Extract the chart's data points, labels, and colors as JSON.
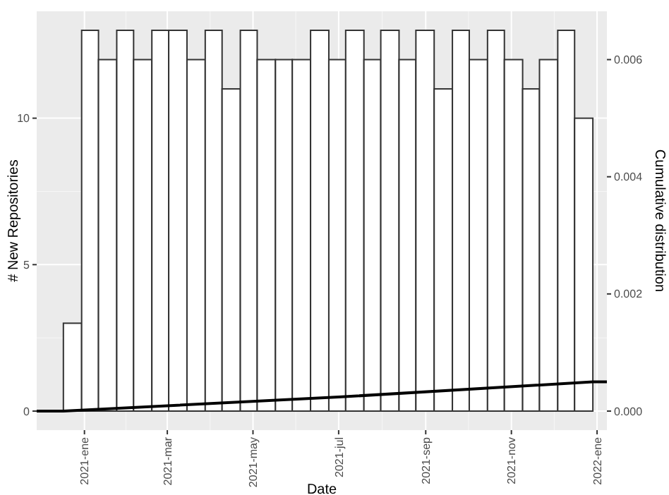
{
  "chart_data": {
    "type": "histogram",
    "xlabel": "Date",
    "ylabel": "# New Repositories",
    "y2label": "Cumulative distribution",
    "bins": [
      "2020-12-17",
      "2020-12-30",
      "2021-01-11",
      "2021-01-24",
      "2021-02-05",
      "2021-02-18",
      "2021-03-02",
      "2021-03-15",
      "2021-03-28",
      "2021-04-09",
      "2021-04-22",
      "2021-05-04",
      "2021-05-17",
      "2021-05-29",
      "2021-06-11",
      "2021-06-24",
      "2021-07-06",
      "2021-07-19",
      "2021-07-31",
      "2021-08-13",
      "2021-08-25",
      "2021-09-07",
      "2021-09-20",
      "2021-10-02",
      "2021-10-15",
      "2021-10-27",
      "2021-11-09",
      "2021-11-21",
      "2021-12-04",
      "2021-12-16",
      "2021-12-29"
    ],
    "values": [
      3,
      13,
      12,
      13,
      12,
      13,
      13,
      12,
      13,
      11,
      13,
      12,
      12,
      12,
      13,
      12,
      13,
      12,
      13,
      12,
      13,
      11,
      13,
      12,
      13,
      12,
      11,
      12,
      13,
      10
    ],
    "color": "#ffffff",
    "series": [
      {
        "type": "line",
        "axis": "y2",
        "color": "#000000",
        "x": [
          "2020-11-28",
          "2020-12-17",
          "2021-07-01",
          "2021-12-29",
          "2022-01-08"
        ],
        "values": [
          0,
          0,
          0.00024,
          0.0005,
          0.0005
        ]
      }
    ],
    "xlim": [
      "2020-11-28",
      "2022-01-08"
    ],
    "xticks": [
      {
        "value": "2021-01-01",
        "label": "2021-ene"
      },
      {
        "value": "2021-03-01",
        "label": "2021-mar"
      },
      {
        "value": "2021-05-01",
        "label": "2021-may"
      },
      {
        "value": "2021-07-01",
        "label": "2021-jul"
      },
      {
        "value": "2021-09-01",
        "label": "2021-sep"
      },
      {
        "value": "2021-11-01",
        "label": "2021-nov"
      },
      {
        "value": "2022-01-01",
        "label": "2022-ene"
      }
    ],
    "ylim": [
      -0.65,
      13.65
    ],
    "yticks": [
      0,
      5,
      10
    ],
    "y2lim": [
      -0.000325,
      0.006825
    ],
    "y2ticks": [
      {
        "value": 0,
        "label": "0.000"
      },
      {
        "value": 0.002,
        "label": "0.002"
      },
      {
        "value": 0.004,
        "label": "0.004"
      },
      {
        "value": 0.006,
        "label": "0.006"
      }
    ],
    "grid": true
  }
}
